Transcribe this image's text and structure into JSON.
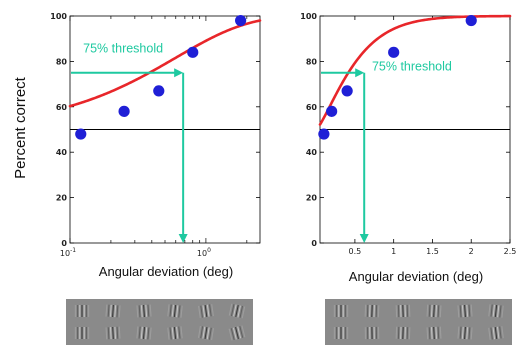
{
  "figure": {
    "ylabel": "Percent correct",
    "threshold_percent": 75,
    "chance_percent": 50
  },
  "colors": {
    "curve": "#e8262a",
    "points": "#1f1fd6",
    "annotation": "#1ec9a0",
    "axis": "#000000"
  },
  "chart_data": [
    {
      "type": "scatter",
      "xscale": "log",
      "xlabel": "Angular deviation (deg)",
      "xlim": [
        0.1,
        2.5
      ],
      "ylim": [
        0,
        100
      ],
      "yticks": [
        0,
        20,
        40,
        60,
        80,
        100
      ],
      "ytick_labels": [
        "0",
        "20",
        "40",
        "60",
        "80",
        "100"
      ],
      "xticks": [
        0.1,
        1
      ],
      "xtick_base": [
        "10",
        "10"
      ],
      "xtick_exp": [
        "-1",
        "0"
      ],
      "points": {
        "x": [
          0.12,
          0.25,
          0.45,
          0.8,
          1.8
        ],
        "y": [
          48,
          58,
          67,
          84,
          98
        ]
      },
      "fit": {
        "alpha": 0.6,
        "beta": 0.82
      },
      "threshold_x": 0.68,
      "annotation": "75% threshold",
      "annotation_side": "left",
      "annotation_at": {
        "x": 0.125,
        "y": 84
      }
    },
    {
      "type": "scatter",
      "xscale": "linear",
      "xlabel": "Angular deviation (deg)",
      "xlim": [
        0.05,
        2.5
      ],
      "ylim": [
        0,
        100
      ],
      "yticks": [
        0,
        20,
        40,
        60,
        80,
        100
      ],
      "ytick_labels": [
        "0",
        "20",
        "40",
        "60",
        "80",
        "100"
      ],
      "xticks": [
        0.5,
        1,
        1.5,
        2,
        2.5
      ],
      "xtick_labels": [
        "0.5",
        "1",
        "1.5",
        "2",
        "2.5"
      ],
      "points": {
        "x": [
          0.1,
          0.2,
          0.4,
          1.0,
          2.0
        ],
        "y": [
          48,
          58,
          67,
          84,
          98
        ]
      },
      "fit": {
        "alpha": 0.55,
        "beta": 1.3
      },
      "threshold_x": 0.62,
      "annotation": "75% threshold",
      "annotation_side": "right",
      "annotation_at": {
        "x": 0.72,
        "y": 76
      }
    }
  ],
  "stimuli": [
    {
      "rows": [
        [
          0,
          4,
          -4,
          6,
          -8,
          12
        ],
        [
          0,
          -3,
          5,
          -6,
          9,
          -14
        ]
      ]
    },
    {
      "rows": [
        [
          0,
          2,
          -2,
          3,
          -4,
          6
        ],
        [
          0,
          -1,
          2,
          -3,
          4,
          -7
        ]
      ]
    }
  ]
}
